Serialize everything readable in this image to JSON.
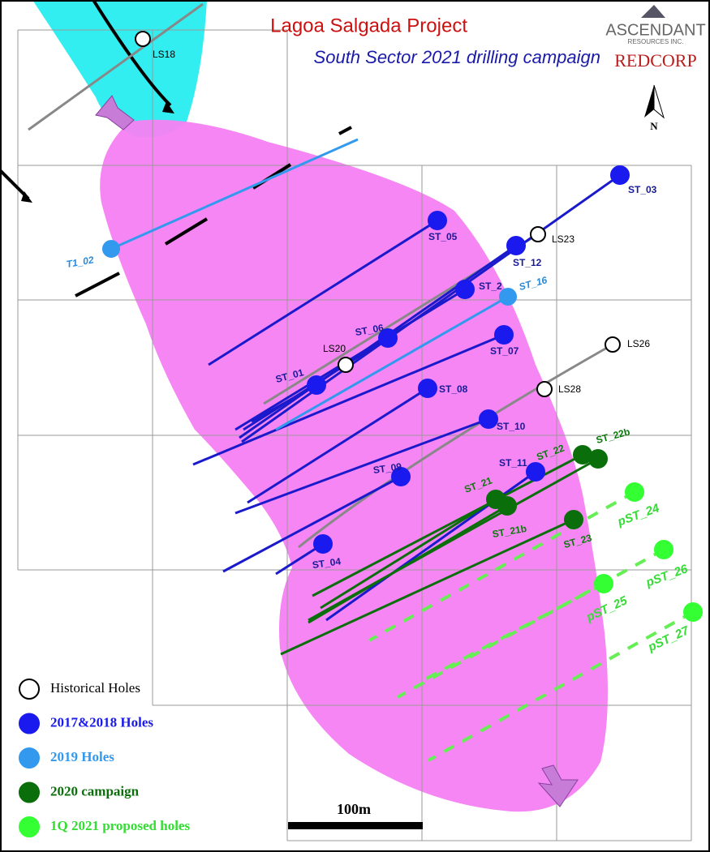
{
  "header": {
    "title": "Lagoa Salgada Project",
    "subtitle": "South Sector 2021 drilling campaign",
    "logo_1": "ASCENDANT",
    "logo_1_sub": "RESOURCES INC.",
    "logo_2": "REDCORP",
    "north": "N"
  },
  "legend": [
    {
      "label": "Historical Holes",
      "holes": [
        "LS18",
        "LS23",
        "LS20",
        "LS26",
        "LS28"
      ]
    },
    {
      "label": "2017&2018 Holes",
      "holes": [
        "ST_03",
        "ST_05",
        "ST_12",
        "ST_2",
        "ST_06",
        "ST_07",
        "ST_01",
        "ST_08",
        "ST_10",
        "ST_09",
        "ST_11",
        "ST_04"
      ]
    },
    {
      "label": "2019 Holes",
      "holes": [
        "T1_02",
        "ST_16"
      ]
    },
    {
      "label": "2020 campaign",
      "holes": [
        "ST_22",
        "ST_22b",
        "ST_21",
        "ST_21b",
        "ST_23"
      ]
    },
    {
      "label": "1Q 2021 proposed holes",
      "holes": [
        "pST_24",
        "pST_26",
        "pST_25",
        "pST_27"
      ]
    }
  ],
  "scale_bar": "100m"
}
